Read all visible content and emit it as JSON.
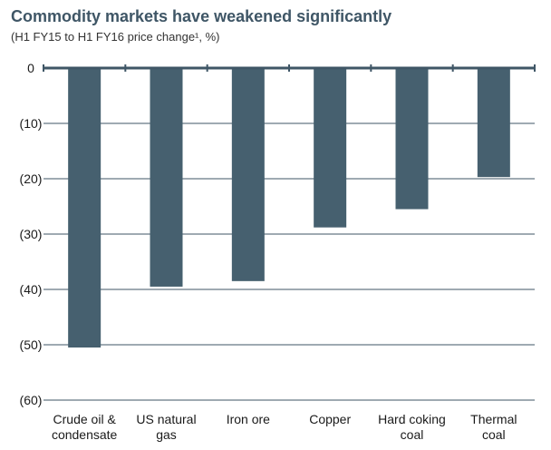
{
  "chart_data": {
    "type": "bar",
    "title": "Commodity markets have weakened significantly",
    "subtitle": "(H1 FY15 to H1 FY16 price change¹, %)",
    "categories": [
      [
        "Crude oil &",
        "condensate"
      ],
      [
        "US natural",
        "gas"
      ],
      [
        "Iron ore"
      ],
      [
        "Copper"
      ],
      [
        "Hard coking",
        "coal"
      ],
      [
        "Thermal",
        "coal"
      ]
    ],
    "values": [
      -50.5,
      -39.5,
      -38.5,
      -28.8,
      -25.5,
      -19.7
    ],
    "ylim": [
      -60,
      0
    ],
    "yticks": [
      0,
      -10,
      -20,
      -30,
      -40,
      -50,
      -60
    ],
    "ytick_labels": [
      "0",
      "(10)",
      "(20)",
      "(30)",
      "(40)",
      "(50)",
      "(60)"
    ],
    "grid": true,
    "colors": {
      "bar": "#46606f",
      "grid": "#3f5666",
      "axis": "#3f5666"
    }
  }
}
